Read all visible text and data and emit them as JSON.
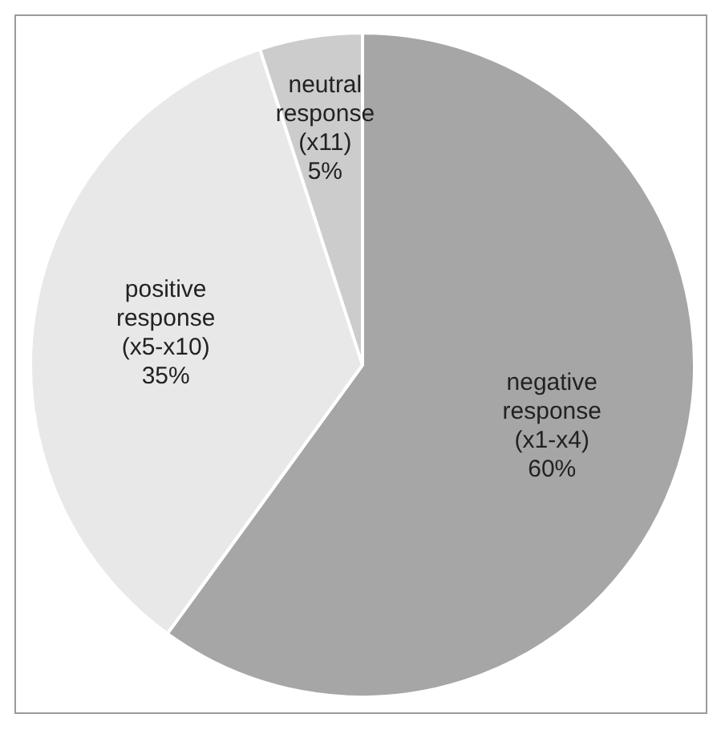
{
  "chart_data": {
    "type": "pie",
    "categories": [
      "negative response (x1-x4)",
      "positive response (x5-x10)",
      "neutral response (x11)"
    ],
    "values": [
      60,
      35,
      5
    ],
    "colors": [
      "#a6a6a6",
      "#e8e8e8",
      "#cccccc"
    ],
    "value_labels": [
      "60%",
      "35%",
      "5%"
    ],
    "legend": false
  }
}
